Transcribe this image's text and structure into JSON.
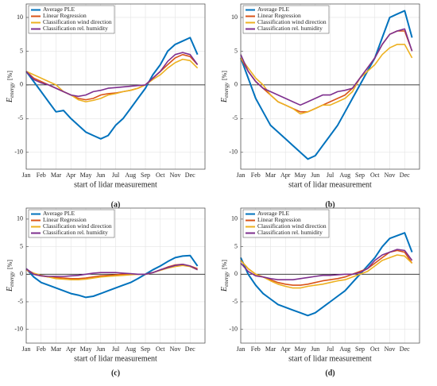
{
  "chart_data": [
    {
      "type": "line",
      "caption": "(a)",
      "xlabel": "start of lidar measurement",
      "ylabel": "E",
      "ylabel_sub": "energy",
      "ylabel_unit": "[%]",
      "categories": [
        "Jan",
        null,
        "Feb",
        null,
        "Mar",
        null,
        "Apr",
        null,
        "May",
        null,
        "Jun",
        null,
        "Jul",
        null,
        "Aug",
        null,
        "Sep",
        null,
        "Oct",
        null,
        "Nov",
        null,
        "Dec",
        null
      ],
      "ylim": [
        -12.5,
        12
      ],
      "yticks": [
        -10,
        -5,
        0,
        5,
        10
      ],
      "grid": true,
      "legend": "upper left",
      "series": [
        {
          "name": "Average PLE",
          "color": "#0072bd",
          "values": [
            2,
            0.5,
            -1,
            -2.5,
            -4,
            -3.8,
            -5,
            -6,
            -7,
            -7.5,
            -8,
            -7.5,
            -6,
            -5,
            -3.5,
            -2,
            -0.5,
            1.5,
            3,
            5,
            6,
            6.5,
            7,
            4.5
          ]
        },
        {
          "name": "Linear Regression",
          "color": "#d95319",
          "values": [
            2,
            1,
            0.5,
            0,
            -0.5,
            -1,
            -1.5,
            -2,
            -2.2,
            -2,
            -1.5,
            -1.3,
            -1.2,
            -1,
            -0.8,
            -0.5,
            0,
            1,
            2,
            3,
            4,
            4.5,
            4.2,
            3
          ]
        },
        {
          "name": "Classification wind direction",
          "color": "#edb120",
          "values": [
            2,
            1.5,
            1,
            0.5,
            0,
            -1,
            -1.5,
            -2.2,
            -2.5,
            -2.3,
            -2,
            -1.5,
            -1.3,
            -1,
            -0.8,
            -0.5,
            0,
            0.8,
            1.5,
            2.5,
            3.3,
            3.8,
            3.6,
            2.5
          ]
        },
        {
          "name": "Classification rel. humidity",
          "color": "#7e2f8e",
          "values": [
            2,
            0.8,
            0.3,
            0,
            -0.5,
            -1,
            -1.5,
            -1.7,
            -1.5,
            -1,
            -0.8,
            -0.5,
            -0.4,
            -0.3,
            -0.2,
            -0.1,
            0,
            1,
            2,
            3.5,
            4.5,
            4.8,
            4.5,
            3
          ]
        }
      ]
    },
    {
      "type": "line",
      "caption": "(b)",
      "xlabel": "start of lidar measurement",
      "ylabel": "E",
      "ylabel_sub": "energy",
      "ylabel_unit": "[%]",
      "categories": [
        "Jan",
        null,
        "Feb",
        null,
        "Mar",
        null,
        "Apr",
        null,
        "May",
        null,
        "Jun",
        null,
        "Jul",
        null,
        "Aug",
        null,
        "Sep",
        null,
        "Oct",
        null,
        "Nov",
        null,
        "Dec",
        null
      ],
      "ylim": [
        -12.5,
        12
      ],
      "yticks": [
        -10,
        -5,
        0,
        5,
        10
      ],
      "grid": true,
      "legend": "upper left",
      "series": [
        {
          "name": "Average PLE",
          "color": "#0072bd",
          "values": [
            4,
            1,
            -2,
            -4,
            -6,
            -7,
            -8,
            -9,
            -10,
            -11,
            -10.5,
            -9,
            -7.5,
            -6,
            -4,
            -2,
            0,
            2,
            4,
            7,
            10,
            10.5,
            11,
            7
          ]
        },
        {
          "name": "Linear Regression",
          "color": "#d95319",
          "values": [
            4,
            2,
            0.5,
            -0.5,
            -1.5,
            -2.5,
            -3,
            -3.5,
            -4,
            -4,
            -3.5,
            -3,
            -2.5,
            -2,
            -1.5,
            -0.5,
            1,
            2.5,
            4,
            6,
            7.5,
            8,
            8,
            5
          ]
        },
        {
          "name": "Classification wind direction",
          "color": "#edb120",
          "values": [
            4,
            2.5,
            1,
            0,
            -1.5,
            -2.5,
            -3,
            -3.5,
            -4.3,
            -4,
            -3.5,
            -3,
            -3,
            -2.5,
            -2,
            -1,
            1,
            2,
            3,
            4.5,
            5.5,
            6,
            6,
            4
          ]
        },
        {
          "name": "Classification rel. humidity",
          "color": "#7e2f8e",
          "values": [
            4.5,
            2,
            0.5,
            -0.5,
            -1,
            -1.5,
            -2,
            -2.5,
            -3,
            -2.5,
            -2,
            -1.5,
            -1.5,
            -1,
            -0.8,
            -0.5,
            1,
            2.5,
            4,
            6,
            7.5,
            8,
            8.3,
            5
          ]
        }
      ]
    },
    {
      "type": "line",
      "caption": "(c)",
      "xlabel": "start of lidar measurement",
      "ylabel": "E",
      "ylabel_sub": "energy",
      "ylabel_unit": "[%]",
      "categories": [
        "Jan",
        null,
        "Feb",
        null,
        "Mar",
        null,
        "Apr",
        null,
        "May",
        null,
        "Jun",
        null,
        "Jul",
        null,
        "Aug",
        null,
        "Sep",
        null,
        "Oct",
        null,
        "Nov",
        null,
        "Dec",
        null
      ],
      "ylim": [
        -12.5,
        12
      ],
      "yticks": [
        -10,
        -5,
        0,
        5,
        10
      ],
      "grid": true,
      "legend": "upper left",
      "series": [
        {
          "name": "Average PLE",
          "color": "#0072bd",
          "values": [
            1,
            -0.5,
            -1.5,
            -2,
            -2.5,
            -3,
            -3.5,
            -3.8,
            -4.2,
            -4,
            -3.5,
            -3,
            -2.5,
            -2,
            -1.5,
            -0.8,
            0,
            0.8,
            1.5,
            2.3,
            3,
            3.3,
            3.4,
            1.5
          ]
        },
        {
          "name": "Linear Regression",
          "color": "#d95319",
          "values": [
            0.8,
            0,
            -0.3,
            -0.5,
            -0.6,
            -0.7,
            -0.8,
            -0.8,
            -0.7,
            -0.5,
            -0.3,
            -0.2,
            -0.1,
            0,
            0,
            0,
            0,
            0.3,
            0.8,
            1.3,
            1.7,
            1.8,
            1.5,
            1
          ]
        },
        {
          "name": "Classification wind direction",
          "color": "#edb120",
          "values": [
            0.8,
            0.2,
            -0.2,
            -0.5,
            -0.8,
            -0.9,
            -1,
            -1,
            -0.9,
            -0.7,
            -0.5,
            -0.4,
            -0.3,
            -0.2,
            -0.1,
            0,
            0,
            0.3,
            0.7,
            1.1,
            1.4,
            1.6,
            1.4,
            0.8
          ]
        },
        {
          "name": "Classification rel. humidity",
          "color": "#7e2f8e",
          "values": [
            1,
            0,
            -0.3,
            -0.4,
            -0.4,
            -0.4,
            -0.3,
            -0.2,
            0,
            0.2,
            0.3,
            0.3,
            0.3,
            0.2,
            0.1,
            0,
            0,
            0.3,
            0.8,
            1.2,
            1.6,
            1.8,
            1.5,
            0.8
          ]
        }
      ]
    },
    {
      "type": "line",
      "caption": "(d)",
      "xlabel": "start of lidar measurement",
      "ylabel": "E",
      "ylabel_sub": "energy",
      "ylabel_unit": "[%]",
      "categories": [
        "Jan",
        null,
        "Feb",
        null,
        "Mar",
        null,
        "Apr",
        null,
        "May",
        null,
        "Jun",
        null,
        "Jul",
        null,
        "Aug",
        null,
        "Sep",
        null,
        "Oct",
        null,
        "Nov",
        null,
        "Dec",
        null
      ],
      "ylim": [
        -12.5,
        12
      ],
      "yticks": [
        -10,
        -5,
        0,
        5,
        10
      ],
      "grid": true,
      "legend": "upper left",
      "series": [
        {
          "name": "Average PLE",
          "color": "#0072bd",
          "values": [
            3,
            0,
            -2,
            -3.5,
            -4.5,
            -5.5,
            -6,
            -6.5,
            -7,
            -7.5,
            -7,
            -6,
            -5,
            -4,
            -3,
            -1.5,
            0,
            1.5,
            3,
            5,
            6.5,
            7,
            7.5,
            4
          ]
        },
        {
          "name": "Linear Regression",
          "color": "#d95319",
          "values": [
            2.5,
            1,
            0,
            -0.5,
            -1,
            -1.5,
            -1.8,
            -2,
            -2,
            -1.8,
            -1.5,
            -1.2,
            -1,
            -0.8,
            -0.5,
            0,
            0.5,
            1,
            2,
            3,
            4,
            4.3,
            4,
            2
          ]
        },
        {
          "name": "Classification wind direction",
          "color": "#edb120",
          "values": [
            2.5,
            1,
            0,
            -0.5,
            -1.2,
            -1.8,
            -2.2,
            -2.5,
            -2.5,
            -2.2,
            -2,
            -1.8,
            -1.5,
            -1.2,
            -1,
            -0.5,
            0,
            0.5,
            1.5,
            2.5,
            3,
            3.5,
            3.3,
            2
          ]
        },
        {
          "name": "Classification rel. humidity",
          "color": "#7e2f8e",
          "values": [
            2,
            0.5,
            -0.3,
            -0.5,
            -0.8,
            -1,
            -1,
            -1,
            -0.8,
            -0.6,
            -0.4,
            -0.2,
            -0.2,
            -0.1,
            0,
            0,
            0.3,
            1,
            2.5,
            3.5,
            4,
            4.5,
            4.3,
            2.5
          ]
        }
      ]
    }
  ]
}
